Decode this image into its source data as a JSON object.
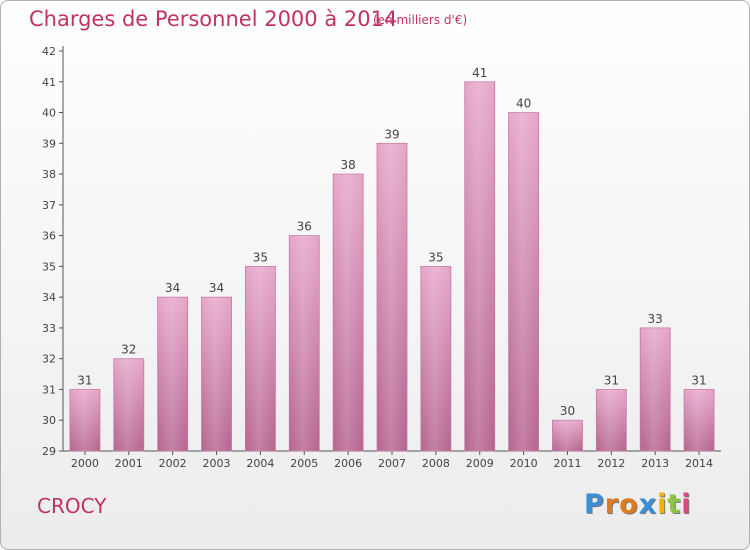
{
  "chart_data": {
    "type": "bar",
    "title": "Charges de Personnel 2000 à 2014",
    "subtitle": "(en milliers d'€)",
    "categories": [
      "2000",
      "2001",
      "2002",
      "2003",
      "2004",
      "2005",
      "2006",
      "2007",
      "2008",
      "2009",
      "2010",
      "2011",
      "2012",
      "2013",
      "2014"
    ],
    "values": [
      31,
      32,
      34,
      34,
      35,
      36,
      38,
      39,
      35,
      41,
      40,
      30,
      31,
      33,
      31
    ],
    "ylim": [
      29,
      42
    ],
    "yticks": [
      29,
      30,
      31,
      32,
      33,
      34,
      35,
      36,
      37,
      38,
      39,
      40,
      41,
      42
    ],
    "grid": false,
    "bar_color": "#d98ab4",
    "bar_color_dark": "#b5648f"
  },
  "footer": {
    "city": "CROCY",
    "logo_letters": [
      "P",
      "r",
      "o",
      "x",
      "i",
      "t",
      "i"
    ],
    "logo_colors": [
      "#3a8fd6",
      "#e07b1f",
      "#e07b1f",
      "#3a8fd6",
      "#f0b400",
      "#8cc63f",
      "#e0457b"
    ]
  },
  "colors": {
    "accent": "#c03264",
    "axis": "#555555"
  }
}
